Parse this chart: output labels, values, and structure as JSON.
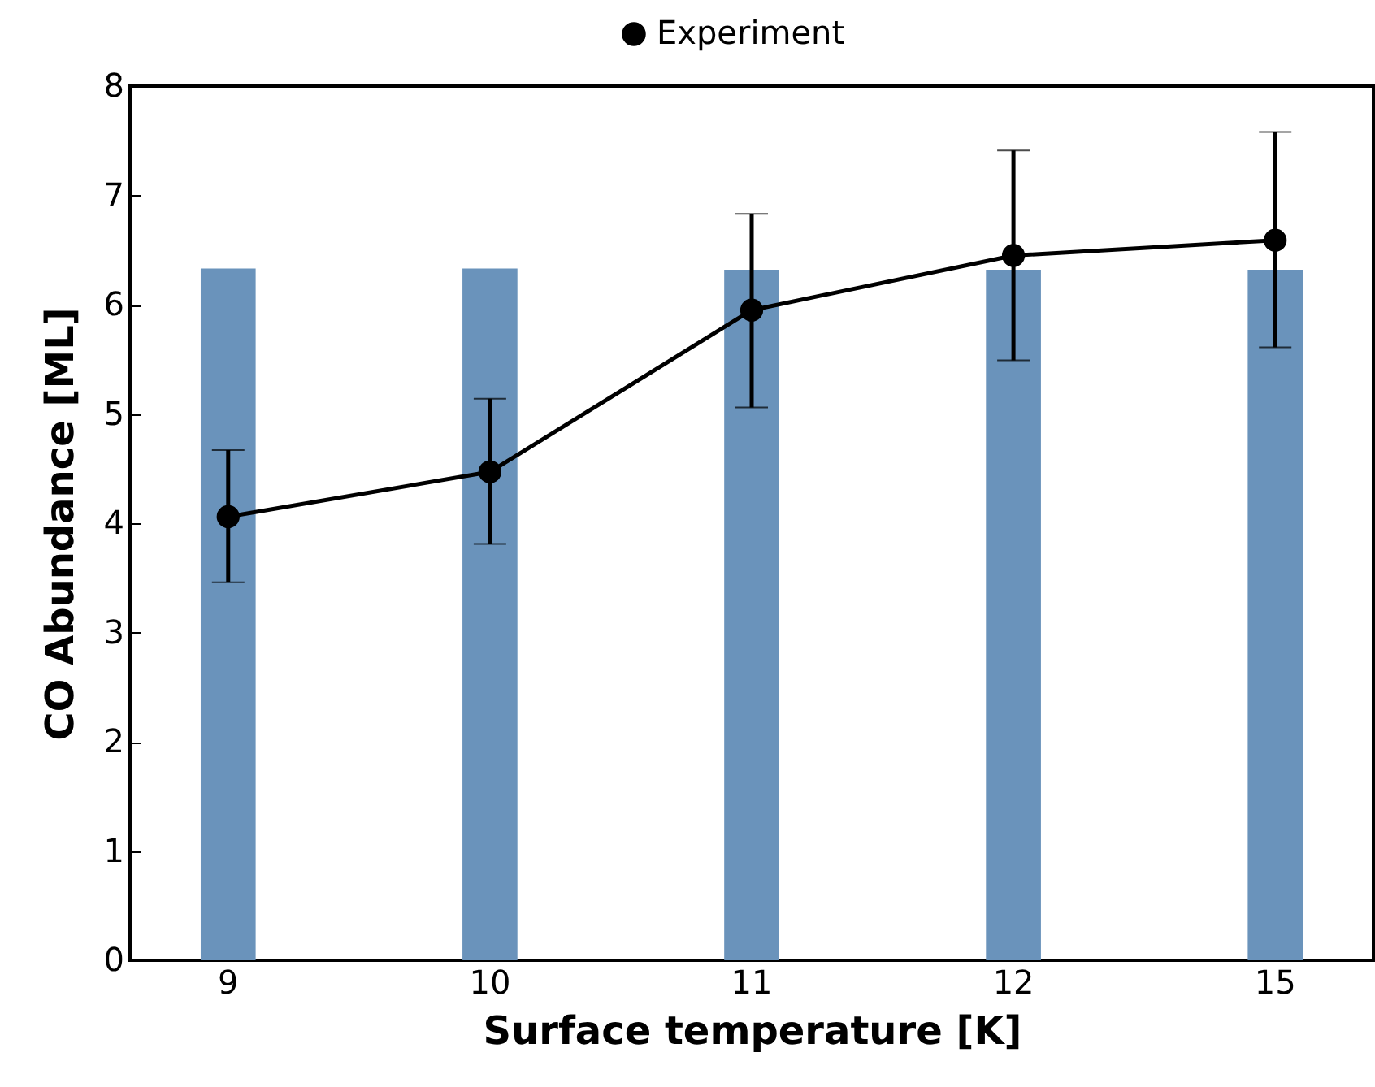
{
  "chart_data": {
    "type": "bar",
    "xlabel": "Surface temperature [K]",
    "ylabel": "CO Abundance [ML]",
    "categories": [
      "9",
      "10",
      "11",
      "12",
      "15"
    ],
    "ylim": [
      0,
      8
    ],
    "yticks": [
      0,
      1,
      2,
      3,
      4,
      5,
      6,
      7,
      8
    ],
    "grid": false,
    "legend": "top",
    "marker": "circle",
    "line_style": "solid",
    "series": [
      {
        "color": "#6a93bb",
        "values": [
          6.33,
          6.33,
          6.32,
          6.32,
          6.32
        ]
      },
      {
        "name": "Experiment",
        "type": "line",
        "color": "#000000",
        "values": [
          4.06,
          4.47,
          5.95,
          6.45,
          6.59
        ],
        "errors": [
          [
            3.46,
            4.67
          ],
          [
            3.81,
            5.14
          ],
          [
            5.06,
            6.83
          ],
          [
            5.49,
            7.41
          ],
          [
            5.61,
            7.58
          ]
        ]
      }
    ]
  }
}
